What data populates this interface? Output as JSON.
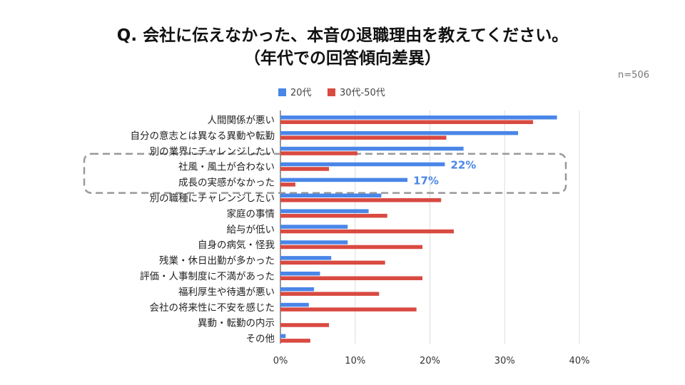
{
  "page": {
    "title_line1": "Q. 会社に伝えなかった、本音の退職理由を教えてください。",
    "title_line2": "（年代での回答傾向差異）",
    "sample_size": "n=506"
  },
  "colors": {
    "series_20s": "#4a86e8",
    "series_30_50s": "#d94a41",
    "highlight_text": "#4a86e8",
    "grid": "#dddddd",
    "highlight_box": "#999999"
  },
  "chart_data": {
    "type": "bar",
    "orientation": "horizontal",
    "categories": [
      "人間関係が悪い",
      "自分の意志とは異なる異動や転勤",
      "別の業界にチャレンジしたい",
      "社風・風土が合わない",
      "成長の実感がなかった",
      "別の職種にチャレンジしたい",
      "家庭の事情",
      "給与が低い",
      "自身の病気・怪我",
      "残業・休日出勤が多かった",
      "評価・人事制度に不満があった",
      "福利厚生や待遇が悪い",
      "会社の将来性に不安を感じた",
      "異動・転勤の内示",
      "その他"
    ],
    "series": [
      {
        "name": "20代",
        "values": [
          37,
          31.8,
          24.5,
          22,
          17,
          13.5,
          11.8,
          9,
          9,
          6.8,
          5.3,
          4.5,
          3.8,
          0,
          0.7
        ]
      },
      {
        "name": "30代-50代",
        "values": [
          33.8,
          22.2,
          10.3,
          6.5,
          2,
          21.5,
          14.3,
          23.2,
          19,
          14,
          19,
          13.2,
          18.2,
          6.5,
          4
        ]
      }
    ],
    "x_ticks": [
      "0%",
      "10%",
      "20%",
      "30%",
      "40%"
    ],
    "xlim": [
      0,
      40
    ],
    "legend_position": "top",
    "grid": true,
    "highlight": {
      "categories": [
        "社風・風土が合わない",
        "成長の実感がなかった"
      ],
      "labels": [
        "22%",
        "17%"
      ]
    }
  }
}
